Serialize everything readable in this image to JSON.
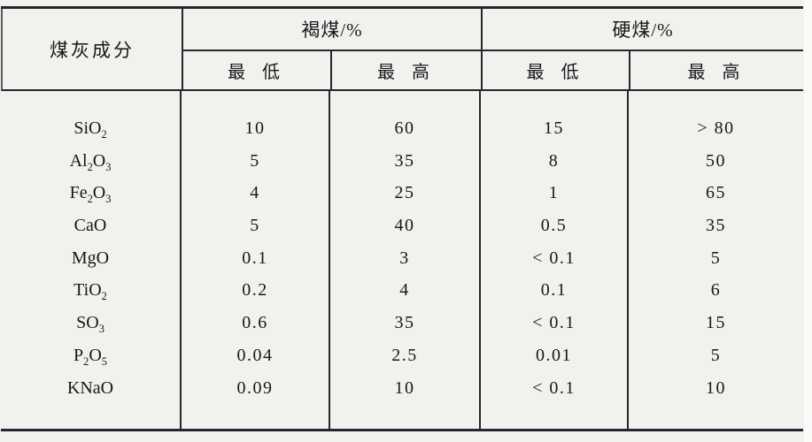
{
  "page": {
    "background": "#f2f1ee"
  },
  "colors": {
    "rule_line": "#26262e",
    "text": "#17171b"
  },
  "table": {
    "component_header": "煤灰成分",
    "groups": [
      {
        "label": "褐煤/%",
        "sub_headers": [
          "最 低",
          "最 高"
        ]
      },
      {
        "label": "硬煤/%",
        "sub_headers": [
          "最 低",
          "最 高"
        ]
      }
    ],
    "rows": [
      {
        "component": "SiO₂",
        "lignite_min": "10",
        "lignite_max": "60",
        "hard_min": "15",
        "hard_max": "> 80"
      },
      {
        "component": "Al₂O₃",
        "lignite_min": "5",
        "lignite_max": "35",
        "hard_min": "8",
        "hard_max": "50"
      },
      {
        "component": "Fe₂O₃",
        "lignite_min": "4",
        "lignite_max": "25",
        "hard_min": "1",
        "hard_max": "65"
      },
      {
        "component": "CaO",
        "lignite_min": "5",
        "lignite_max": "40",
        "hard_min": "0.5",
        "hard_max": "35"
      },
      {
        "component": "MgO",
        "lignite_min": "0.1",
        "lignite_max": "3",
        "hard_min": "< 0.1",
        "hard_max": "5"
      },
      {
        "component": "TiO₂",
        "lignite_min": "0.2",
        "lignite_max": "4",
        "hard_min": "0.1",
        "hard_max": "6"
      },
      {
        "component": "SO₃",
        "lignite_min": "0.6",
        "lignite_max": "35",
        "hard_min": "< 0.1",
        "hard_max": "15"
      },
      {
        "component": "P₂O₅",
        "lignite_min": "0.04",
        "lignite_max": "2.5",
        "hard_min": "0.01",
        "hard_max": "5"
      },
      {
        "component": "KNaO",
        "lignite_min": "0.09",
        "lignite_max": "10",
        "hard_min": "< 0.1",
        "hard_max": "10"
      }
    ]
  }
}
